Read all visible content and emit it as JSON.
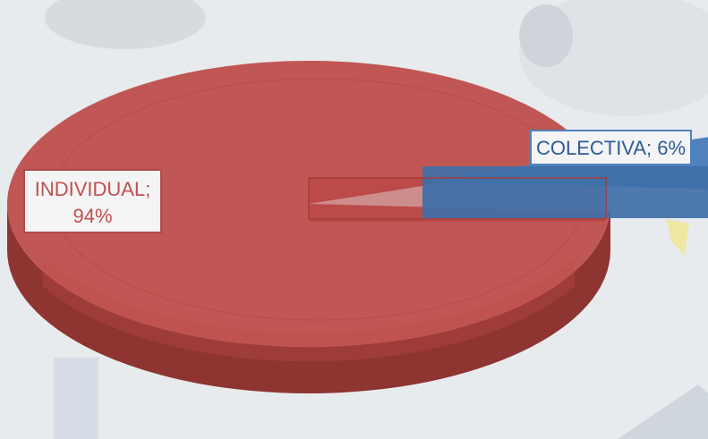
{
  "chart_data": {
    "type": "pie",
    "slices": [
      {
        "label": "INDIVIDUAL",
        "value": 94,
        "display": "INDIVIDUAL;\n94%",
        "line1": "INDIVIDUAL;",
        "line2": "94%",
        "color": "#c0504d"
      },
      {
        "label": "COLECTIVA",
        "value": 6,
        "display": "COLECTIVA; 6%",
        "color": "#4f81bd"
      }
    ],
    "style": "3d-exploded",
    "legend": "none"
  },
  "colors": {
    "individual": "#c0504d",
    "colectiva": "#4f81bd",
    "background": "#e9ecef"
  }
}
